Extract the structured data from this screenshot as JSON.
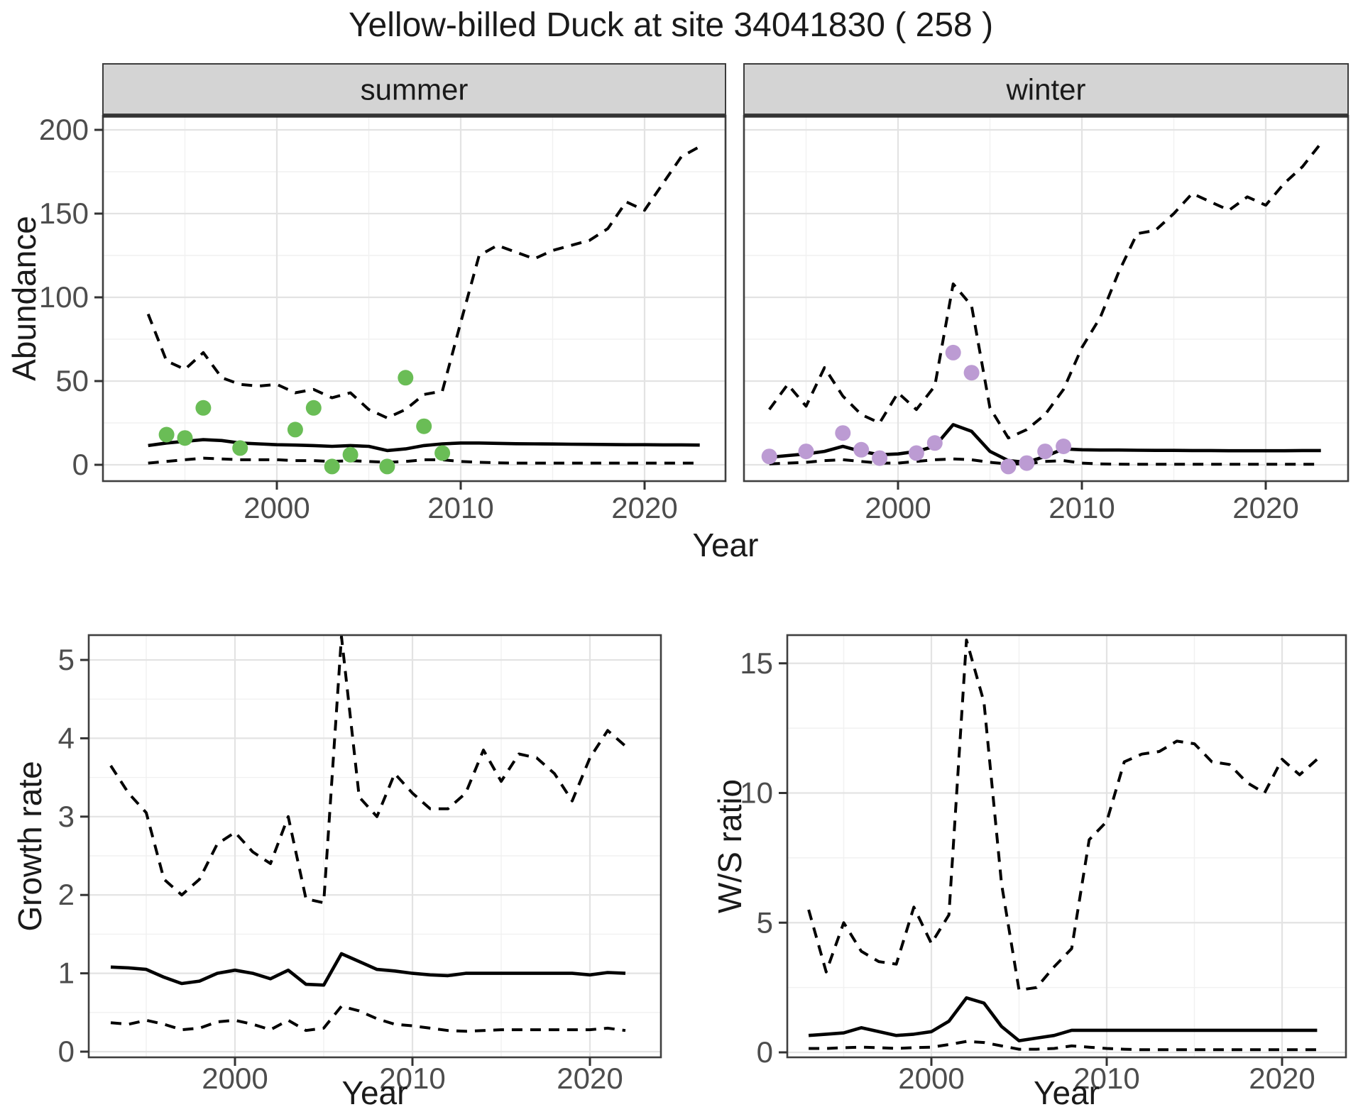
{
  "title": "Yellow-billed Duck at site 34041830 ( 258 )",
  "colors": {
    "summer_point": "#6ABD56",
    "winter_point": "#BC9BD3",
    "series_line": "#000000",
    "grid_major": "#E3E3E3",
    "grid_minor": "#F1F1F1",
    "strip_bg": "#D4D4D4",
    "panel_border": "#3F3F3F",
    "axis_text": "#4D4D4D",
    "title_text": "#1A1A1A"
  },
  "chart_data": {
    "type": "line",
    "title": "Yellow-billed Duck at site 34041830 ( 258 )",
    "abundance": {
      "ylabel": "Abundance",
      "xlabel": "Year",
      "x_ticks": [
        2000,
        2010,
        2020
      ],
      "y_ticks": [
        0,
        50,
        100,
        150,
        200
      ],
      "ylim": [
        -10,
        208
      ],
      "xlim": [
        1990.6,
        2024.5
      ],
      "grid": "on",
      "years": [
        1993,
        1994,
        1995,
        1996,
        1997,
        1998,
        1999,
        2000,
        2001,
        2002,
        2003,
        2004,
        2005,
        2006,
        2007,
        2008,
        2009,
        2010,
        2011,
        2012,
        2013,
        2014,
        2015,
        2016,
        2017,
        2018,
        2019,
        2020,
        2021,
        2022,
        2023
      ],
      "facets": [
        {
          "label": "summer",
          "upper": [
            90,
            62,
            57,
            67,
            52,
            48,
            47,
            48,
            43,
            45,
            40,
            43,
            33,
            28,
            33,
            42,
            44,
            85,
            125,
            131,
            127,
            123,
            128,
            131,
            134,
            141,
            157,
            152,
            168,
            184,
            190
          ],
          "median": [
            11.5,
            13,
            14,
            15,
            14.5,
            13,
            12.5,
            12,
            11.8,
            11.5,
            11,
            11.5,
            11,
            8.5,
            9.5,
            11.5,
            12.5,
            13,
            13,
            12.8,
            12.6,
            12.5,
            12.4,
            12.3,
            12.2,
            12.1,
            12,
            12,
            11.9,
            11.9,
            11.8
          ],
          "lower": [
            1,
            2,
            3,
            4,
            3.5,
            3,
            3,
            3,
            2.5,
            2.5,
            2,
            2.5,
            2,
            1.5,
            2,
            3,
            3,
            2,
            1.5,
            1.2,
            1,
            1,
            1,
            1,
            1,
            1,
            1,
            1,
            1,
            1,
            1
          ],
          "obs_years": [
            1994,
            1995,
            1996,
            1998,
            2001,
            2002,
            2003,
            2004,
            2006,
            2007,
            2008,
            2009
          ],
          "obs_values": [
            18,
            16,
            34,
            10,
            21,
            34,
            -1,
            6,
            -1,
            52,
            23,
            7
          ],
          "point_color_key": "summer_point"
        },
        {
          "label": "winter",
          "upper": [
            33,
            48,
            35,
            58,
            41,
            30,
            25,
            43,
            33,
            47,
            108,
            95,
            34,
            16,
            21,
            30,
            45,
            70,
            88,
            115,
            138,
            140,
            150,
            162,
            157,
            152,
            160,
            155,
            168,
            178,
            192
          ],
          "median": [
            4.5,
            5.5,
            6.5,
            8,
            11,
            8,
            6,
            6.5,
            8,
            11,
            24,
            20,
            8,
            2.5,
            1.5,
            5,
            9.5,
            9,
            8.8,
            8.8,
            8.7,
            8.6,
            8.6,
            8.5,
            8.5,
            8.4,
            8.4,
            8.4,
            8.4,
            8.5,
            8.5
          ],
          "lower": [
            0.5,
            1,
            1.5,
            2.5,
            3,
            2,
            1,
            1,
            2,
            3,
            3.5,
            3,
            1.5,
            0.5,
            0.5,
            2,
            2.5,
            1,
            0.5,
            0.4,
            0.3,
            0.3,
            0.3,
            0.3,
            0.3,
            0.3,
            0.3,
            0.3,
            0.3,
            0.3,
            0.3
          ],
          "obs_years": [
            1993,
            1995,
            1997,
            1998,
            1999,
            2001,
            2002,
            2003,
            2004,
            2006,
            2007,
            2008,
            2009
          ],
          "obs_values": [
            5,
            8,
            19,
            9,
            4,
            7,
            13,
            67,
            55,
            -1,
            1,
            8,
            11
          ],
          "point_color_key": "winter_point"
        }
      ]
    },
    "growth_rate": {
      "ylabel": "Growth rate",
      "xlabel": "Year",
      "x_ticks": [
        2000,
        2010,
        2020
      ],
      "y_ticks": [
        0,
        1,
        2,
        3,
        4,
        5
      ],
      "ylim": [
        -0.1,
        5.35
      ],
      "xlim": [
        1991.8,
        2024.0
      ],
      "grid": "on",
      "years": [
        1993,
        1994,
        1995,
        1996,
        1997,
        1998,
        1999,
        2000,
        2001,
        2002,
        2003,
        2004,
        2005,
        2006,
        2007,
        2008,
        2009,
        2010,
        2011,
        2012,
        2013,
        2014,
        2015,
        2016,
        2017,
        2018,
        2019,
        2020,
        2021,
        2022
      ],
      "upper": [
        3.65,
        3.3,
        3.05,
        2.2,
        2.0,
        2.2,
        2.65,
        2.8,
        2.55,
        2.4,
        3.0,
        1.95,
        1.9,
        5.3,
        3.25,
        3.0,
        3.55,
        3.3,
        3.1,
        3.1,
        3.3,
        3.85,
        3.45,
        3.8,
        3.75,
        3.55,
        3.2,
        3.75,
        4.1,
        3.9
      ],
      "median": [
        1.08,
        1.07,
        1.05,
        0.95,
        0.87,
        0.9,
        1.0,
        1.04,
        1.0,
        0.93,
        1.04,
        0.86,
        0.85,
        1.25,
        1.15,
        1.05,
        1.03,
        1.0,
        0.98,
        0.97,
        1.0,
        1.0,
        1.0,
        1.0,
        1.0,
        1.0,
        1.0,
        0.98,
        1.01,
        1.0
      ],
      "lower": [
        0.37,
        0.35,
        0.4,
        0.35,
        0.28,
        0.3,
        0.38,
        0.4,
        0.35,
        0.28,
        0.4,
        0.27,
        0.3,
        0.58,
        0.52,
        0.42,
        0.35,
        0.33,
        0.3,
        0.27,
        0.26,
        0.27,
        0.28,
        0.28,
        0.28,
        0.28,
        0.28,
        0.28,
        0.3,
        0.27
      ]
    },
    "ws_ratio": {
      "ylabel": "W/S ratio",
      "xlabel": "Year",
      "x_ticks": [
        2000,
        2010,
        2020
      ],
      "y_ticks": [
        0,
        5,
        10,
        15
      ],
      "ylim": [
        -0.6,
        16.1
      ],
      "xlim": [
        1991.8,
        2023.8
      ],
      "grid": "on",
      "years": [
        1993,
        1994,
        1995,
        1996,
        1997,
        1998,
        1999,
        2000,
        2001,
        2002,
        2003,
        2004,
        2005,
        2006,
        2007,
        2008,
        2009,
        2010,
        2011,
        2012,
        2013,
        2014,
        2015,
        2016,
        2017,
        2018,
        2019,
        2020,
        2021,
        2022
      ],
      "upper": [
        5.5,
        3.1,
        5.0,
        3.9,
        3.5,
        3.4,
        5.6,
        4.2,
        5.3,
        15.9,
        13.5,
        6.5,
        2.4,
        2.5,
        3.3,
        4.0,
        8.2,
        8.9,
        11.2,
        11.5,
        11.6,
        12.0,
        11.9,
        11.2,
        11.1,
        10.4,
        10.0,
        11.3,
        10.7,
        11.3
      ],
      "median": [
        0.65,
        0.7,
        0.75,
        0.95,
        0.8,
        0.65,
        0.7,
        0.8,
        1.2,
        2.1,
        1.9,
        1.0,
        0.45,
        0.55,
        0.65,
        0.85,
        0.85,
        0.85,
        0.85,
        0.85,
        0.85,
        0.85,
        0.85,
        0.85,
        0.85,
        0.85,
        0.85,
        0.85,
        0.85,
        0.85
      ],
      "lower": [
        0.15,
        0.15,
        0.18,
        0.2,
        0.18,
        0.15,
        0.18,
        0.2,
        0.3,
        0.42,
        0.38,
        0.25,
        0.12,
        0.12,
        0.15,
        0.25,
        0.2,
        0.15,
        0.12,
        0.1,
        0.1,
        0.1,
        0.1,
        0.1,
        0.1,
        0.1,
        0.1,
        0.1,
        0.1,
        0.1
      ]
    }
  }
}
